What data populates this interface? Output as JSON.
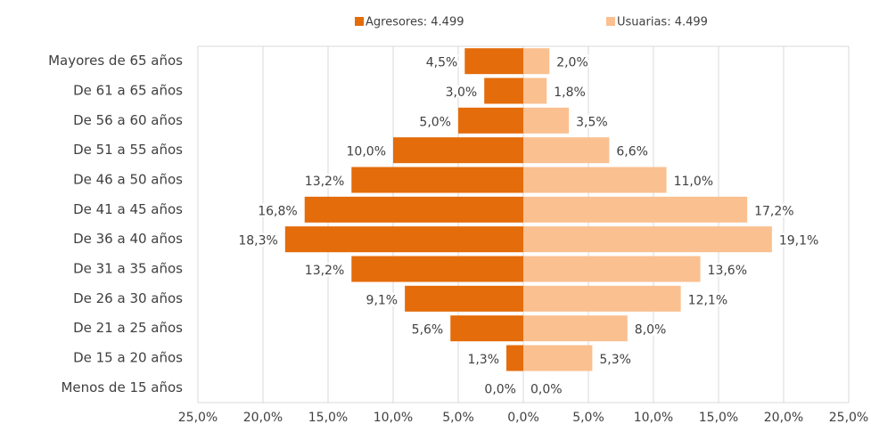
{
  "chart_data": {
    "type": "pyramid",
    "categories": [
      "Mayores de 65 años",
      "De 61 a 65 años",
      "De 56 a 60 años",
      "De 51 a 55 años",
      "De 46 a 50 años",
      "De 41 a 45 años",
      "De 36 a 40 años",
      "De 31 a 35 años",
      "De 26 a 30 años",
      "De 21 a 25 años",
      "De 15 a 20 años",
      "Menos de 15 años"
    ],
    "series": [
      {
        "name": "Agresores: 4.499",
        "color": "#e46c0a",
        "side": "left",
        "values": [
          4.5,
          3.0,
          5.0,
          10.0,
          13.2,
          16.8,
          18.3,
          13.2,
          9.1,
          5.6,
          1.3,
          0.0
        ],
        "value_labels": [
          "4,5%",
          "3,0%",
          "5,0%",
          "10,0%",
          "13,2%",
          "16,8%",
          "18,3%",
          "13,2%",
          "9,1%",
          "5,6%",
          "1,3%",
          "0,0%"
        ]
      },
      {
        "name": "Usuarias: 4.499",
        "color": "#fac090",
        "side": "right",
        "values": [
          2.0,
          1.8,
          3.5,
          6.6,
          11.0,
          17.2,
          19.1,
          13.6,
          12.1,
          8.0,
          5.3,
          0.0
        ],
        "value_labels": [
          "2,0%",
          "1,8%",
          "3,5%",
          "6,6%",
          "11,0%",
          "17,2%",
          "19,1%",
          "13,6%",
          "12,1%",
          "8,0%",
          "5,3%",
          "0,0%"
        ]
      }
    ],
    "xlim": [
      -25,
      25
    ],
    "xticks": [
      {
        "value": -25,
        "label": "25,0%"
      },
      {
        "value": -20,
        "label": "20,0%"
      },
      {
        "value": -15,
        "label": "15,0%"
      },
      {
        "value": -10,
        "label": "10,0%"
      },
      {
        "value": -5,
        "label": "5,0%"
      },
      {
        "value": 0,
        "label": "0,0%"
      },
      {
        "value": 5,
        "label": "5,0%"
      },
      {
        "value": 10,
        "label": "10,0%"
      },
      {
        "value": 15,
        "label": "15,0%"
      },
      {
        "value": 20,
        "label": "20,0%"
      },
      {
        "value": 25,
        "label": "25,0%"
      }
    ],
    "grid": true,
    "legend": "top"
  }
}
